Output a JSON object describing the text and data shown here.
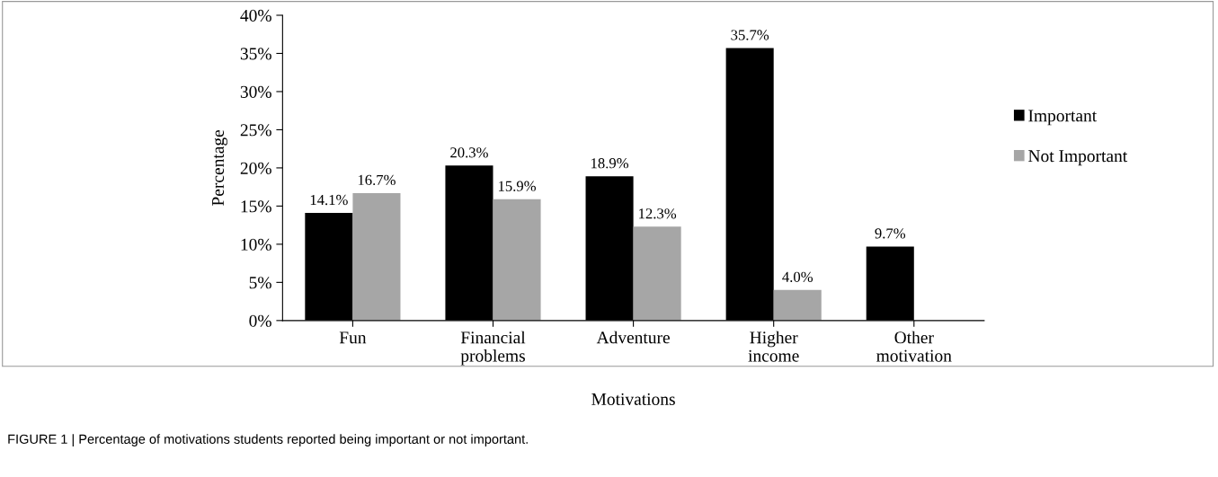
{
  "chart_data": {
    "type": "bar",
    "xlabel": "Motivations",
    "ylabel": "Percentage",
    "categories": [
      "Fun",
      "Financial\nproblems",
      "Adventure",
      "Higher\nincome",
      "Other\nmotivation"
    ],
    "series": [
      {
        "name": "Important",
        "color": "#000000",
        "values": [
          14.1,
          20.3,
          18.9,
          35.7,
          9.7
        ],
        "value_labels": [
          "14.1%",
          "20.3%",
          "18.9%",
          "35.7%",
          "9.7%"
        ]
      },
      {
        "name": "Not Important",
        "color": "#a6a6a6",
        "values": [
          16.7,
          15.9,
          12.3,
          4.0,
          null
        ],
        "value_labels": [
          "16.7%",
          "15.9%",
          "12.3%",
          "4.0%",
          null
        ]
      }
    ],
    "ylim": [
      0,
      40
    ],
    "yticks": [
      {
        "value": 0,
        "label": "0%"
      },
      {
        "value": 5,
        "label": "5%"
      },
      {
        "value": 10,
        "label": "10%"
      },
      {
        "value": 15,
        "label": "15%"
      },
      {
        "value": 20,
        "label": "20%"
      },
      {
        "value": 25,
        "label": "25%"
      },
      {
        "value": 30,
        "label": "30%"
      },
      {
        "value": 35,
        "label": "35%"
      },
      {
        "value": 40,
        "label": "40%"
      }
    ],
    "grid": false,
    "legend": "right",
    "annotations": [
      "FIGURE 1 | Percentage of motivations students reported being important or not important."
    ]
  }
}
